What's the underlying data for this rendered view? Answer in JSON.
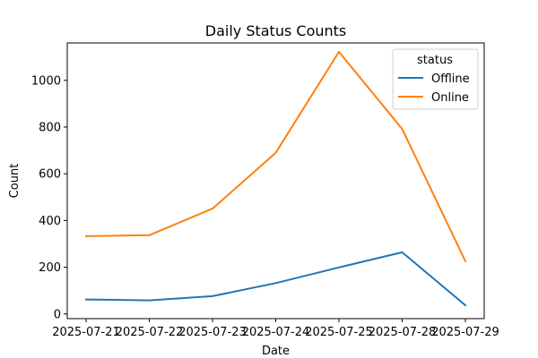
{
  "chart_data": {
    "type": "line",
    "title": "Daily Status Counts",
    "xlabel": "Date",
    "ylabel": "Count",
    "x": [
      "2025-07-21",
      "2025-07-22",
      "2025-07-23",
      "2025-07-24",
      "2025-07-25",
      "2025-07-28",
      "2025-07-29"
    ],
    "y_ticks": [
      0,
      200,
      400,
      600,
      800,
      1000
    ],
    "ylim": [
      -20,
      1160
    ],
    "grid": false,
    "legend": {
      "title": "status",
      "placement": "top-right"
    },
    "series": [
      {
        "name": "Offline",
        "color": "#1f77b4",
        "values": [
          62,
          58,
          76,
          132,
          199,
          264,
          37
        ]
      },
      {
        "name": "Online",
        "color": "#ff7f0e",
        "values": [
          333,
          337,
          451,
          690,
          1122,
          792,
          226
        ]
      }
    ]
  }
}
